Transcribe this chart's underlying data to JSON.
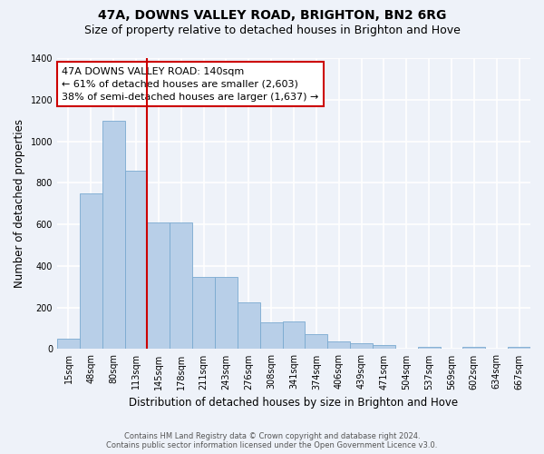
{
  "title": "47A, DOWNS VALLEY ROAD, BRIGHTON, BN2 6RG",
  "subtitle": "Size of property relative to detached houses in Brighton and Hove",
  "xlabel": "Distribution of detached houses by size in Brighton and Hove",
  "ylabel": "Number of detached properties",
  "footer_line1": "Contains HM Land Registry data © Crown copyright and database right 2024.",
  "footer_line2": "Contains public sector information licensed under the Open Government Licence v3.0.",
  "bar_labels": [
    "15sqm",
    "48sqm",
    "80sqm",
    "113sqm",
    "145sqm",
    "178sqm",
    "211sqm",
    "243sqm",
    "276sqm",
    "308sqm",
    "341sqm",
    "374sqm",
    "406sqm",
    "439sqm",
    "471sqm",
    "504sqm",
    "537sqm",
    "569sqm",
    "602sqm",
    "634sqm",
    "667sqm"
  ],
  "bar_values": [
    50,
    750,
    1100,
    860,
    610,
    610,
    345,
    345,
    225,
    130,
    135,
    70,
    35,
    30,
    20,
    0,
    10,
    0,
    10,
    0,
    10
  ],
  "bar_color": "#b8cfe8",
  "bar_edge_color": "#7aaad0",
  "vline_x": 3.5,
  "vline_color": "#cc0000",
  "annotation_text_line1": "47A DOWNS VALLEY ROAD: 140sqm",
  "annotation_text_line2": "← 61% of detached houses are smaller (2,603)",
  "annotation_text_line3": "38% of semi-detached houses are larger (1,637) →",
  "annotation_box_edgecolor": "#cc0000",
  "annotation_text_color": "black",
  "ylim": [
    0,
    1400
  ],
  "background_color": "#eef2f9",
  "grid_color": "white",
  "title_fontsize": 10,
  "subtitle_fontsize": 9,
  "xlabel_fontsize": 8.5,
  "ylabel_fontsize": 8.5,
  "tick_fontsize": 7,
  "annotation_fontsize": 8
}
